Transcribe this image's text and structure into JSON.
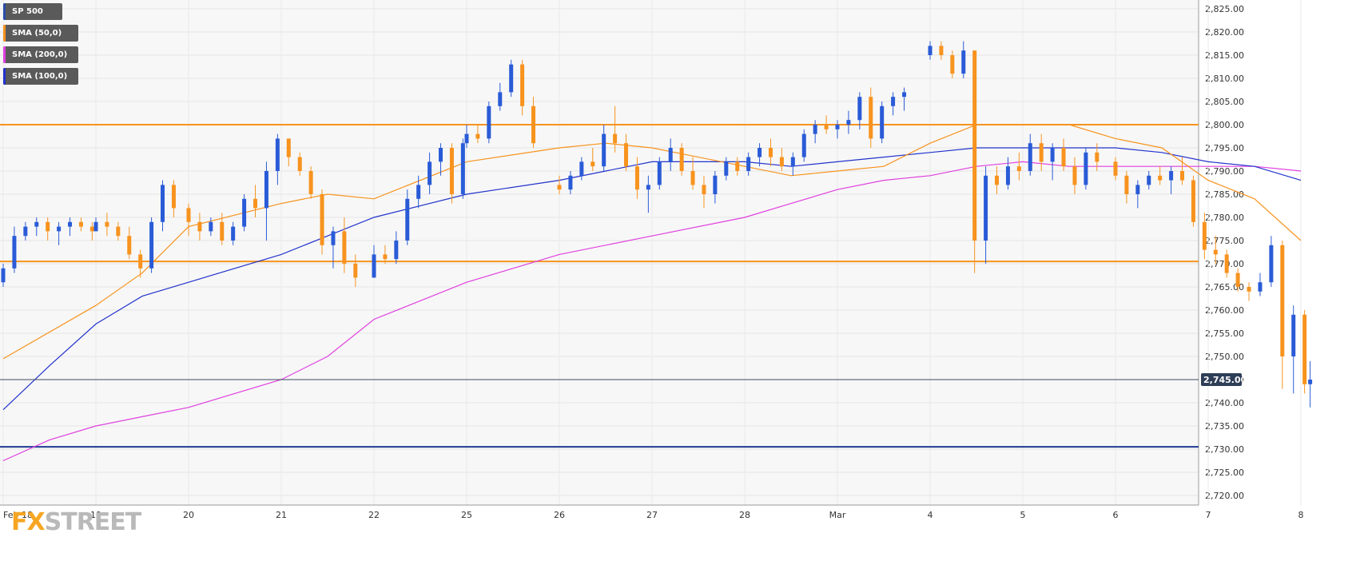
{
  "legend": [
    {
      "label": "SP 500",
      "color": "#2a4da8"
    },
    {
      "label": "SMA (50,0)",
      "color": "#f7931e"
    },
    {
      "label": "SMA (200,0)",
      "color": "#e040e0"
    },
    {
      "label": "SMA (100,0)",
      "color": "#2233cc"
    }
  ],
  "logo": {
    "part1": "FX",
    "part2": "STREET"
  },
  "chart_data": {
    "type": "candlestick",
    "ylim": [
      2718,
      2827
    ],
    "y_ticks": [
      "2,825.00",
      "2,820.00",
      "2,815.00",
      "2,810.00",
      "2,805.00",
      "2,800.00",
      "2,795.00",
      "2,790.00",
      "2,785.00",
      "2,780.00",
      "2,775.00",
      "2,770.00",
      "2,765.00",
      "2,760.00",
      "2,755.00",
      "2,750.00",
      "2,745.00",
      "2,740.00",
      "2,735.00",
      "2,730.00",
      "2,725.00",
      "2,720.00"
    ],
    "y_tick_values": [
      2825,
      2820,
      2815,
      2810,
      2805,
      2800,
      2795,
      2790,
      2785,
      2780,
      2775,
      2770,
      2765,
      2760,
      2755,
      2750,
      2745,
      2740,
      2735,
      2730,
      2725,
      2720
    ],
    "x_ticks": [
      "Feb 18",
      "19",
      "20",
      "21",
      "22",
      "25",
      "26",
      "27",
      "28",
      "Mar",
      "4",
      "5",
      "6",
      "7",
      "8"
    ],
    "x_range": [
      0,
      14.2
    ],
    "last_price": {
      "value": 2745,
      "label": "2,745.00"
    },
    "horizontal_lines": [
      {
        "value": 2800,
        "color": "#f7931e"
      },
      {
        "value": 2770.5,
        "color": "#f7931e"
      },
      {
        "value": 2730.5,
        "color": "#1f3a93"
      }
    ],
    "colors": {
      "up": "#2a5bd7",
      "down": "#f7931e",
      "sma50": "#f7931e",
      "sma100": "#2233cc",
      "sma200": "#e040e0"
    },
    "candles": [
      [
        0.0,
        2766,
        2770,
        2765,
        2769
      ],
      [
        0.12,
        2769,
        2778,
        2768,
        2776
      ],
      [
        0.24,
        2776,
        2779,
        2775,
        2778
      ],
      [
        0.36,
        2778,
        2780,
        2776,
        2779
      ],
      [
        0.48,
        2779,
        2780,
        2775,
        2777
      ],
      [
        0.6,
        2777,
        2779,
        2774,
        2778
      ],
      [
        0.72,
        2778,
        2780,
        2776,
        2779
      ],
      [
        0.84,
        2779,
        2780,
        2777,
        2778
      ],
      [
        0.96,
        2778,
        2779,
        2775,
        2777
      ],
      [
        1.0,
        2777,
        2780,
        2777,
        2779
      ],
      [
        1.12,
        2779,
        2781,
        2776,
        2778
      ],
      [
        1.24,
        2778,
        2779,
        2775,
        2776
      ],
      [
        1.36,
        2776,
        2778,
        2771,
        2772
      ],
      [
        1.48,
        2772,
        2773,
        2767,
        2769
      ],
      [
        1.6,
        2769,
        2780,
        2768,
        2779
      ],
      [
        1.72,
        2779,
        2788,
        2777,
        2787
      ],
      [
        1.84,
        2787,
        2788,
        2780,
        2782
      ],
      [
        2.0,
        2782,
        2783,
        2776,
        2779
      ],
      [
        2.12,
        2779,
        2781,
        2775,
        2777
      ],
      [
        2.24,
        2777,
        2780,
        2776,
        2779
      ],
      [
        2.36,
        2779,
        2781,
        2774,
        2775
      ],
      [
        2.48,
        2775,
        2779,
        2774,
        2778
      ],
      [
        2.6,
        2778,
        2785,
        2777,
        2784
      ],
      [
        2.72,
        2784,
        2787,
        2780,
        2782
      ],
      [
        2.84,
        2782,
        2792,
        2775,
        2790
      ],
      [
        2.96,
        2790,
        2798,
        2787,
        2797
      ],
      [
        3.08,
        2797,
        2797,
        2791,
        2793
      ],
      [
        3.2,
        2793,
        2794,
        2789,
        2790
      ],
      [
        3.32,
        2790,
        2791,
        2784,
        2785
      ],
      [
        3.44,
        2785,
        2786,
        2772,
        2774
      ],
      [
        3.56,
        2774,
        2778,
        2769,
        2777
      ],
      [
        3.68,
        2777,
        2780,
        2768,
        2770
      ],
      [
        3.8,
        2770,
        2772,
        2765,
        2767
      ],
      [
        4.0,
        2767,
        2774,
        2767,
        2772
      ],
      [
        4.12,
        2772,
        2774,
        2770,
        2771
      ],
      [
        4.24,
        2771,
        2777,
        2770,
        2775
      ],
      [
        4.36,
        2775,
        2786,
        2774,
        2784
      ],
      [
        4.48,
        2784,
        2789,
        2782,
        2787
      ],
      [
        4.6,
        2787,
        2794,
        2785,
        2792
      ],
      [
        4.72,
        2792,
        2796,
        2789,
        2795
      ],
      [
        4.84,
        2795,
        2796,
        2783,
        2785
      ],
      [
        4.96,
        2785,
        2797,
        2784,
        2796
      ],
      [
        5.0,
        2796,
        2800,
        2795,
        2798
      ],
      [
        5.12,
        2798,
        2800,
        2796,
        2797
      ],
      [
        5.24,
        2797,
        2805,
        2796,
        2804
      ],
      [
        5.36,
        2804,
        2809,
        2803,
        2807
      ],
      [
        5.48,
        2807,
        2814,
        2806,
        2813
      ],
      [
        5.6,
        2813,
        2814,
        2802,
        2804
      ],
      [
        5.72,
        2804,
        2806,
        2795,
        2796
      ],
      [
        6.0,
        2787,
        2789,
        2785,
        2786
      ],
      [
        6.12,
        2786,
        2790,
        2785,
        2789
      ],
      [
        6.24,
        2789,
        2793,
        2788,
        2792
      ],
      [
        6.36,
        2792,
        2795,
        2790,
        2791
      ],
      [
        6.48,
        2791,
        2800,
        2790,
        2798
      ],
      [
        6.6,
        2798,
        2804,
        2794,
        2796
      ],
      [
        6.72,
        2796,
        2798,
        2790,
        2791
      ],
      [
        6.84,
        2791,
        2793,
        2784,
        2786
      ],
      [
        6.96,
        2786,
        2789,
        2781,
        2787
      ],
      [
        7.08,
        2787,
        2793,
        2786,
        2792
      ],
      [
        7.2,
        2792,
        2797,
        2790,
        2795
      ],
      [
        7.32,
        2795,
        2796,
        2789,
        2790
      ],
      [
        7.44,
        2790,
        2793,
        2786,
        2787
      ],
      [
        7.56,
        2787,
        2789,
        2782,
        2785
      ],
      [
        7.68,
        2785,
        2790,
        2783,
        2789
      ],
      [
        7.8,
        2789,
        2793,
        2788,
        2792
      ],
      [
        7.92,
        2792,
        2793,
        2789,
        2790
      ],
      [
        8.04,
        2790,
        2794,
        2789,
        2793
      ],
      [
        8.16,
        2793,
        2796,
        2791,
        2795
      ],
      [
        8.28,
        2795,
        2797,
        2791,
        2793
      ],
      [
        8.4,
        2793,
        2795,
        2790,
        2791
      ],
      [
        8.52,
        2791,
        2794,
        2789,
        2793
      ],
      [
        8.64,
        2793,
        2799,
        2792,
        2798
      ],
      [
        8.76,
        2798,
        2801,
        2796,
        2800
      ],
      [
        8.88,
        2800,
        2802,
        2798,
        2799
      ],
      [
        9.0,
        2799,
        2801,
        2797,
        2800
      ],
      [
        9.12,
        2800,
        2803,
        2798,
        2801
      ],
      [
        9.24,
        2801,
        2807,
        2799,
        2806
      ],
      [
        9.36,
        2806,
        2808,
        2795,
        2797
      ],
      [
        9.48,
        2797,
        2805,
        2796,
        2804
      ],
      [
        9.6,
        2804,
        2807,
        2802,
        2806
      ],
      [
        9.72,
        2806,
        2808,
        2803,
        2807
      ],
      [
        10.0,
        2815,
        2818,
        2814,
        2817
      ],
      [
        10.12,
        2817,
        2818,
        2814,
        2815
      ],
      [
        10.24,
        2815,
        2816,
        2810,
        2811
      ],
      [
        10.36,
        2811,
        2818,
        2810,
        2816
      ],
      [
        10.48,
        2816,
        2816,
        2768,
        2775
      ],
      [
        10.6,
        2775,
        2791,
        2770,
        2789
      ],
      [
        10.72,
        2789,
        2791,
        2785,
        2787
      ],
      [
        10.84,
        2787,
        2793,
        2786,
        2791
      ],
      [
        10.96,
        2791,
        2794,
        2788,
        2790
      ],
      [
        11.08,
        2790,
        2798,
        2789,
        2796
      ],
      [
        11.2,
        2796,
        2798,
        2790,
        2792
      ],
      [
        11.32,
        2792,
        2796,
        2788,
        2795
      ],
      [
        11.44,
        2795,
        2797,
        2790,
        2791
      ],
      [
        11.56,
        2791,
        2793,
        2785,
        2787
      ],
      [
        11.68,
        2787,
        2795,
        2786,
        2794
      ],
      [
        11.8,
        2794,
        2796,
        2790,
        2792
      ],
      [
        12.0,
        2792,
        2793,
        2788,
        2789
      ],
      [
        12.12,
        2789,
        2790,
        2783,
        2785
      ],
      [
        12.24,
        2785,
        2788,
        2782,
        2787
      ],
      [
        12.36,
        2787,
        2790,
        2786,
        2789
      ],
      [
        12.48,
        2789,
        2791,
        2787,
        2788
      ],
      [
        12.6,
        2788,
        2791,
        2785,
        2790
      ],
      [
        12.72,
        2790,
        2793,
        2787,
        2788
      ],
      [
        12.84,
        2788,
        2789,
        2778,
        2779
      ],
      [
        12.96,
        2779,
        2781,
        2771,
        2773
      ],
      [
        13.08,
        2773,
        2776,
        2770,
        2772
      ],
      [
        13.2,
        2772,
        2773,
        2767,
        2768
      ],
      [
        13.32,
        2768,
        2769,
        2764,
        2765
      ],
      [
        13.44,
        2765,
        2766,
        2762,
        2764
      ],
      [
        13.56,
        2764,
        2768,
        2763,
        2766
      ],
      [
        13.68,
        2766,
        2776,
        2765,
        2774
      ],
      [
        13.8,
        2774,
        2775,
        2743,
        2750
      ],
      [
        13.92,
        2750,
        2761,
        2742,
        2759
      ],
      [
        14.04,
        2759,
        2760,
        2742,
        2744
      ],
      [
        14.1,
        2744,
        2749,
        2739,
        2745
      ]
    ],
    "sma50": [
      [
        0,
        2749.5
      ],
      [
        1,
        2761
      ],
      [
        1.5,
        2768
      ],
      [
        2,
        2778
      ],
      [
        3,
        2783
      ],
      [
        3.5,
        2785
      ],
      [
        4,
        2784
      ],
      [
        5,
        2792
      ],
      [
        6,
        2795
      ],
      [
        6.5,
        2796
      ],
      [
        7,
        2795
      ],
      [
        8,
        2791
      ],
      [
        8.5,
        2789
      ],
      [
        9,
        2790
      ],
      [
        9.5,
        2791
      ],
      [
        10,
        2796
      ],
      [
        10.5,
        2800
      ],
      [
        11,
        2800
      ],
      [
        11.5,
        2800
      ],
      [
        12,
        2797
      ],
      [
        12.5,
        2795
      ],
      [
        13,
        2788
      ],
      [
        13.5,
        2784
      ],
      [
        14,
        2775
      ]
    ],
    "sma100": [
      [
        0,
        2738.5
      ],
      [
        0.5,
        2748
      ],
      [
        1,
        2757
      ],
      [
        1.5,
        2763
      ],
      [
        2,
        2766
      ],
      [
        3,
        2772
      ],
      [
        3.5,
        2776
      ],
      [
        4,
        2780
      ],
      [
        5,
        2785
      ],
      [
        6,
        2788
      ],
      [
        6.5,
        2790
      ],
      [
        7,
        2792
      ],
      [
        8,
        2792
      ],
      [
        8.5,
        2791
      ],
      [
        9,
        2792
      ],
      [
        9.5,
        2793
      ],
      [
        10,
        2794
      ],
      [
        10.5,
        2795
      ],
      [
        11,
        2795
      ],
      [
        11.5,
        2795
      ],
      [
        12,
        2795
      ],
      [
        12.5,
        2794
      ],
      [
        13,
        2792
      ],
      [
        13.5,
        2791
      ],
      [
        14,
        2788
      ]
    ],
    "sma200": [
      [
        0,
        2727.5
      ],
      [
        0.5,
        2732
      ],
      [
        1,
        2735
      ],
      [
        1.5,
        2737
      ],
      [
        2,
        2739
      ],
      [
        3,
        2745
      ],
      [
        3.5,
        2750
      ],
      [
        4,
        2758
      ],
      [
        5,
        2766
      ],
      [
        5.5,
        2769
      ],
      [
        6,
        2772
      ],
      [
        7,
        2776
      ],
      [
        8,
        2780
      ],
      [
        8.5,
        2783
      ],
      [
        9,
        2786
      ],
      [
        9.5,
        2788
      ],
      [
        10,
        2789
      ],
      [
        10.5,
        2791
      ],
      [
        11,
        2792
      ],
      [
        11.5,
        2791
      ],
      [
        12,
        2791
      ],
      [
        12.5,
        2791
      ],
      [
        13,
        2791
      ],
      [
        13.5,
        2791
      ],
      [
        14,
        2790
      ]
    ]
  }
}
